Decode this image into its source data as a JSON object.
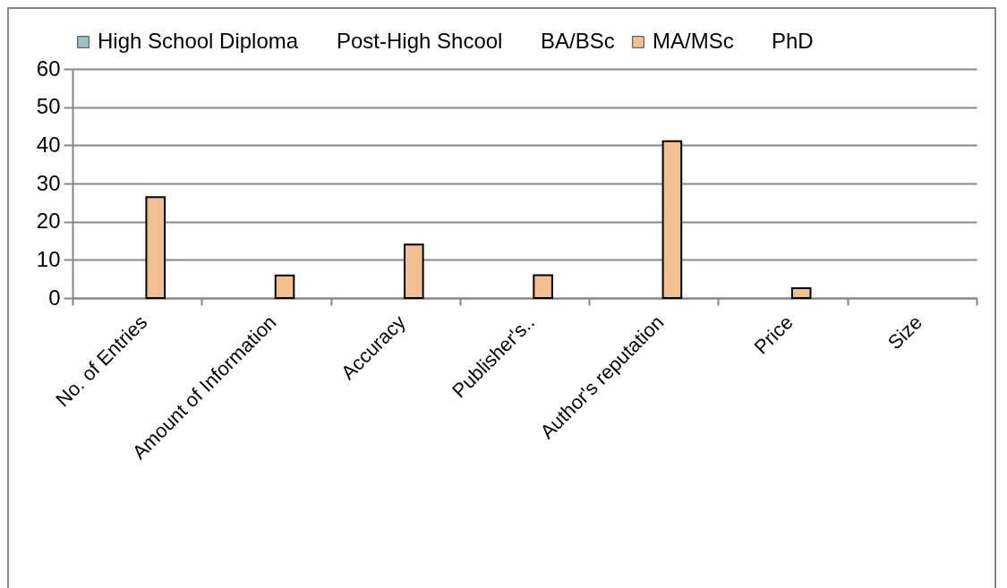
{
  "chart_data": {
    "type": "bar",
    "categories": [
      "No. of Entries",
      "Amount of Information",
      "Accuracy",
      "Publisher's..",
      "Author's reputation",
      "Price",
      "Size"
    ],
    "series": [
      {
        "name": "High School Diploma",
        "color": "#9cc3c6",
        "values": [
          null,
          null,
          null,
          null,
          null,
          null,
          null
        ]
      },
      {
        "name": "Post-High Shcool",
        "values": [
          null,
          null,
          null,
          null,
          null,
          null,
          null
        ]
      },
      {
        "name": "BA/BSc",
        "values": [
          null,
          null,
          null,
          null,
          null,
          null,
          null
        ]
      },
      {
        "name": "MA/MSc",
        "color": "#f2c08e",
        "values": [
          26.4,
          5.9,
          14,
          6,
          41.1,
          2.6,
          null
        ]
      },
      {
        "name": "PhD",
        "values": [
          null,
          null,
          null,
          null,
          null,
          null,
          null
        ]
      }
    ],
    "ylim": [
      0,
      60
    ],
    "yticks": [
      0,
      10,
      20,
      30,
      40,
      50,
      60
    ],
    "grid": "y",
    "legend": "top"
  }
}
